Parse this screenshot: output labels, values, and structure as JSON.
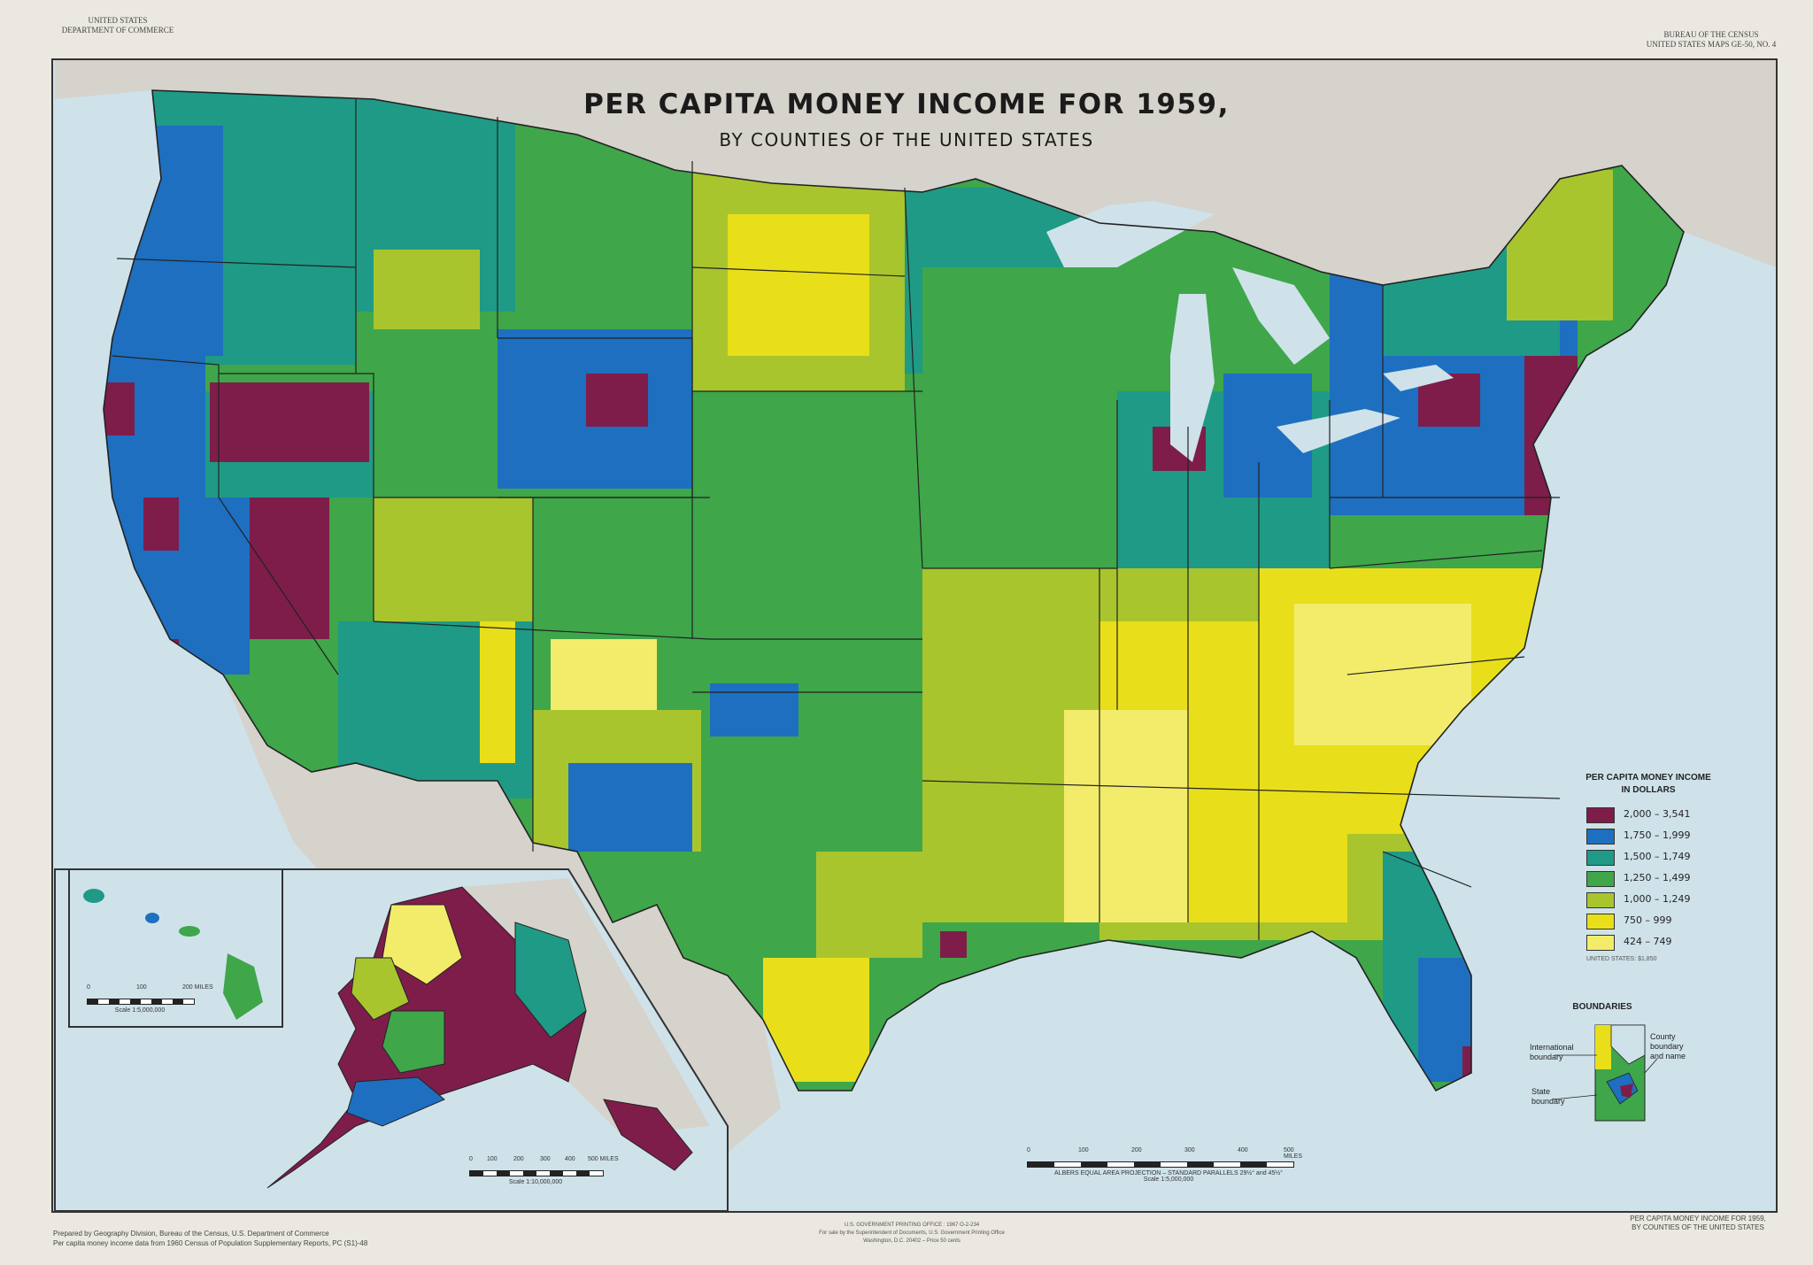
{
  "header": {
    "top_left_lines": [
      "UNITED STATES",
      "DEPARTMENT OF COMMERCE"
    ],
    "top_right_lines": [
      "BUREAU OF THE CENSUS",
      "UNITED STATES MAPS GE-50, NO. 4"
    ]
  },
  "map": {
    "title": "PER CAPITA MONEY INCOME FOR 1959,",
    "subtitle": "BY COUNTIES OF THE UNITED STATES",
    "ocean_color": "#cfe2ea",
    "land_outside_color": "#d6d3cc"
  },
  "legend": {
    "title_line1": "PER CAPITA MONEY INCOME",
    "title_line2": "IN DOLLARS",
    "classes": [
      {
        "label": "2,000 – 3,541",
        "color": "#7e1d4a"
      },
      {
        "label": "1,750 – 1,999",
        "color": "#1e6fc0"
      },
      {
        "label": "1,500 – 1,749",
        "color": "#1f9a86"
      },
      {
        "label": "1,250 – 1,499",
        "color": "#3fa64a"
      },
      {
        "label": "1,000 – 1,249",
        "color": "#a9c52e"
      },
      {
        "label": "750 – 999",
        "color": "#e8df1a"
      },
      {
        "label": "424 – 749",
        "color": "#f3ec6a"
      }
    ],
    "note": "UNITED STATES: $1,850"
  },
  "boundaries": {
    "title": "BOUNDARIES",
    "international": "International boundary",
    "state": "State boundary",
    "county": "County boundary and name"
  },
  "scales": {
    "main_numbers": [
      "0",
      "100",
      "200",
      "300",
      "400",
      "500 MILES"
    ],
    "main_projection": "ALBERS EQUAL AREA PROJECTION – STANDARD PARALLELS 29½° and 45½°",
    "main_scale": "Scale 1:5,000,000",
    "alaska_numbers": [
      "0",
      "100",
      "200",
      "300",
      "400",
      "500 MILES"
    ],
    "alaska_scale": "Scale 1:10,000,000",
    "hawaii_numbers": [
      "0",
      "100",
      "200 MILES"
    ],
    "hawaii_scale": "Scale 1:5,000,000"
  },
  "footer": {
    "left_line1": "Prepared by Geography Division, Bureau of the Census, U.S. Department of Commerce",
    "left_line2": "Per capita money income data from 1960 Census of Population Supplementary Reports, PC (S1)-48",
    "center_line1": "U.S. GOVERNMENT PRINTING OFFICE : 1967 O-2-234",
    "center_line2": "For sale by the Superintendent of Documents, U.S. Government Printing Office",
    "center_line3": "Washington, D.C. 20402 – Price 50 cents",
    "right_line1": "PER CAPITA MONEY INCOME FOR 1959,",
    "right_line2": "BY COUNTIES OF THE UNITED STATES"
  }
}
